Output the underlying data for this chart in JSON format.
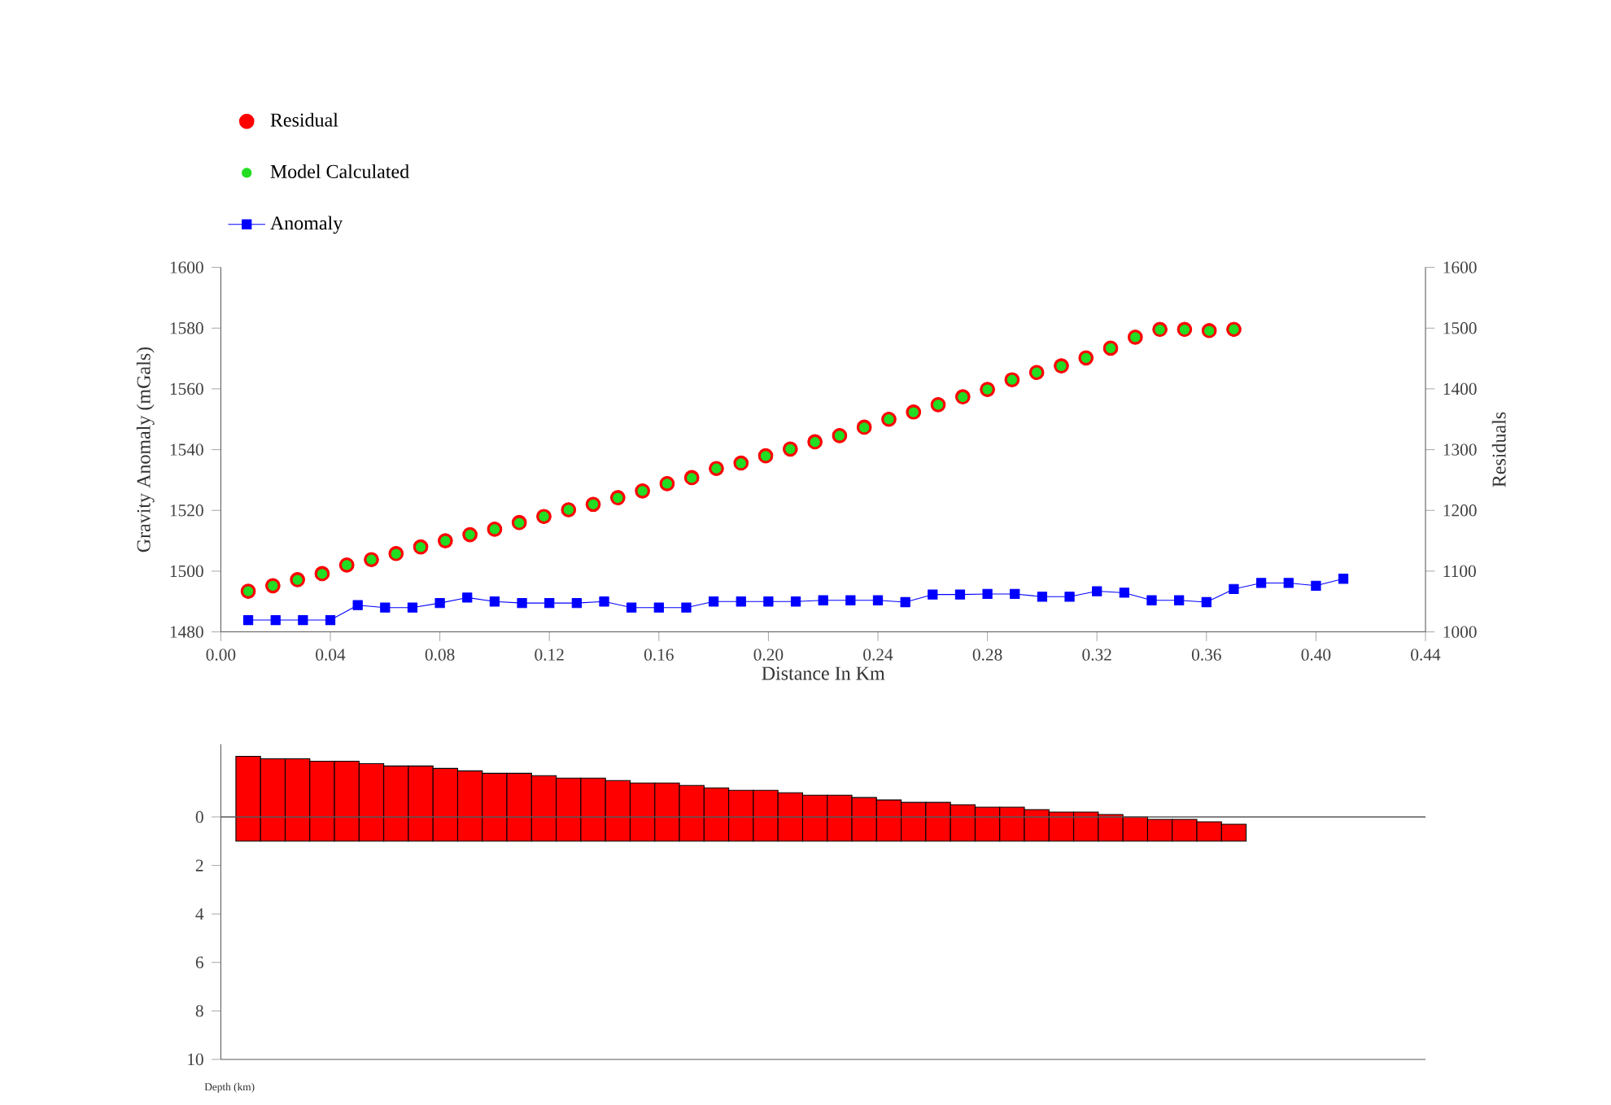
{
  "chart_data": [
    {
      "type": "scatter",
      "xlabel": "Distance In Km",
      "ylabel": "Gravity Anomaly (mGals)",
      "y2label": "Residuals",
      "xlim": [
        0,
        0.44
      ],
      "xticks": [
        {
          "value": 0,
          "label": "0.00"
        },
        {
          "value": 0.04,
          "label": "0.04"
        },
        {
          "value": 0.08,
          "label": "0.08"
        },
        {
          "value": 0.12,
          "label": "0.12"
        },
        {
          "value": 0.16,
          "label": "0.16"
        },
        {
          "value": 0.2,
          "label": "0.20"
        },
        {
          "value": 0.24,
          "label": "0.24"
        },
        {
          "value": 0.28,
          "label": "0.28"
        },
        {
          "value": 0.32,
          "label": "0.32"
        },
        {
          "value": 0.36,
          "label": "0.36"
        },
        {
          "value": 0.4,
          "label": "0.40"
        },
        {
          "value": 0.44,
          "label": "0.44"
        }
      ],
      "ylim": [
        1480,
        1600
      ],
      "yticks": [
        1480,
        1500,
        1520,
        1540,
        1560,
        1580,
        1600
      ],
      "y2lim": [
        1000,
        1600
      ],
      "y2ticks": [
        1000,
        1100,
        1200,
        1300,
        1400,
        1500,
        1600
      ],
      "legend": "top left",
      "series": [
        {
          "name": "Residual",
          "type": "scatter",
          "marker": "circle",
          "axis": "y2",
          "color": "#ff0000",
          "x": [
            0.01,
            0.019,
            0.028,
            0.037,
            0.046,
            0.055,
            0.064,
            0.073,
            0.082,
            0.091,
            0.1,
            0.109,
            0.118,
            0.127,
            0.136,
            0.145,
            0.154,
            0.163,
            0.172,
            0.181,
            0.19,
            0.199,
            0.208,
            0.217,
            0.226,
            0.235,
            0.244,
            0.253,
            0.262,
            0.271,
            0.28,
            0.289,
            0.298,
            0.307,
            0.316,
            0.325,
            0.334,
            0.343,
            0.352,
            0.361,
            0.37
          ],
          "values": [
            1067,
            1076,
            1086,
            1096,
            1110,
            1119,
            1129,
            1140,
            1150,
            1160,
            1169,
            1180,
            1190,
            1201,
            1210,
            1221,
            1232,
            1244,
            1254,
            1269,
            1278,
            1290,
            1301,
            1313,
            1323,
            1337,
            1350,
            1362,
            1374,
            1387,
            1399,
            1415,
            1427,
            1438,
            1451,
            1467,
            1485,
            1498,
            1498,
            1496,
            1498
          ]
        },
        {
          "name": "Model Calculated",
          "type": "scatter",
          "marker": "circle",
          "color": "#22dd22",
          "x": [
            0.01,
            0.019,
            0.028,
            0.037,
            0.046,
            0.055,
            0.064,
            0.073,
            0.082,
            0.091,
            0.1,
            0.109,
            0.118,
            0.127,
            0.136,
            0.145,
            0.154,
            0.163,
            0.172,
            0.181,
            0.19,
            0.199,
            0.208,
            0.217,
            0.226,
            0.235,
            0.244,
            0.253,
            0.262,
            0.271,
            0.28,
            0.289,
            0.298,
            0.307,
            0.316,
            0.325,
            0.334,
            0.343,
            0.352,
            0.361,
            0.37
          ],
          "values": [
            1493.4,
            1495.2,
            1497.1,
            1499.1,
            1502.0,
            1503.8,
            1505.7,
            1507.9,
            1510.0,
            1512.0,
            1513.8,
            1515.9,
            1518.0,
            1520.2,
            1522.0,
            1524.1,
            1526.4,
            1528.8,
            1530.7,
            1533.8,
            1535.5,
            1537.9,
            1540.2,
            1542.5,
            1544.6,
            1547.3,
            1550.0,
            1552.3,
            1554.8,
            1557.3,
            1559.8,
            1563.0,
            1565.4,
            1567.5,
            1570.2,
            1573.4,
            1577.0,
            1579.5,
            1579.5,
            1579.1,
            1579.6
          ]
        },
        {
          "name": "Anomaly",
          "type": "line",
          "marker": "square",
          "color": "#0000ff",
          "x": [
            0.01,
            0.02,
            0.03,
            0.04,
            0.05,
            0.06,
            0.07,
            0.08,
            0.09,
            0.1,
            0.11,
            0.12,
            0.13,
            0.14,
            0.15,
            0.16,
            0.17,
            0.18,
            0.19,
            0.2,
            0.21,
            0.22,
            0.23,
            0.24,
            0.25,
            0.26,
            0.27,
            0.28,
            0.29,
            0.3,
            0.31,
            0.32,
            0.33,
            0.34,
            0.35,
            0.36,
            0.37,
            0.38,
            0.39,
            0.4,
            0.41
          ],
          "values": [
            1483.9,
            1483.9,
            1483.9,
            1483.9,
            1488.8,
            1488.0,
            1488.0,
            1489.5,
            1491.3,
            1490.0,
            1489.5,
            1489.5,
            1489.5,
            1490.0,
            1488.0,
            1488.0,
            1488.0,
            1490.0,
            1490.0,
            1490.0,
            1490.0,
            1490.4,
            1490.4,
            1490.4,
            1489.8,
            1492.3,
            1492.3,
            1492.5,
            1492.5,
            1491.6,
            1491.6,
            1493.4,
            1492.9,
            1490.4,
            1490.4,
            1489.8,
            1494.1,
            1496.1,
            1496.1,
            1495.2,
            1497.5
          ]
        }
      ]
    },
    {
      "type": "bar",
      "ylabel": "Depth (km)",
      "tick_labels": "y",
      "color": "#ff0000",
      "xlim": [
        0,
        0.44
      ],
      "ylim": [
        10,
        -3
      ],
      "yticks": [
        0,
        2,
        4,
        6,
        8,
        10
      ],
      "ref_lines": [
        {
          "axis": "y",
          "value": 0
        }
      ],
      "x": [
        0.01,
        0.019,
        0.028,
        0.037,
        0.046,
        0.055,
        0.064,
        0.073,
        0.082,
        0.091,
        0.1,
        0.109,
        0.118,
        0.127,
        0.136,
        0.145,
        0.154,
        0.163,
        0.172,
        0.181,
        0.19,
        0.199,
        0.208,
        0.217,
        0.226,
        0.235,
        0.244,
        0.253,
        0.262,
        0.271,
        0.28,
        0.289,
        0.298,
        0.307,
        0.316,
        0.325,
        0.334,
        0.343,
        0.352,
        0.361,
        0.37
      ],
      "base": [
        -2.5,
        -2.4,
        -2.4,
        -2.3,
        -2.3,
        -2.2,
        -2.1,
        -2.1,
        -2.0,
        -1.9,
        -1.8,
        -1.8,
        -1.7,
        -1.6,
        -1.6,
        -1.5,
        -1.4,
        -1.4,
        -1.3,
        -1.2,
        -1.1,
        -1.1,
        -1.0,
        -0.9,
        -0.9,
        -0.8,
        -0.7,
        -0.6,
        -0.6,
        -0.5,
        -0.4,
        -0.4,
        -0.3,
        -0.2,
        -0.2,
        -0.1,
        0.0,
        0.1,
        0.1,
        0.2,
        0.3
      ],
      "values": [
        3.5,
        3.4,
        3.4,
        3.3,
        3.3,
        3.2,
        3.1,
        3.1,
        3.0,
        2.9,
        2.8,
        2.8,
        2.7,
        2.6,
        2.6,
        2.5,
        2.4,
        2.4,
        2.3,
        2.2,
        2.1,
        2.1,
        2.0,
        1.9,
        1.9,
        1.8,
        1.7,
        1.6,
        1.6,
        1.5,
        1.4,
        1.4,
        1.3,
        1.2,
        1.2,
        1.1,
        1.0,
        0.9,
        0.9,
        0.8,
        0.7
      ]
    }
  ]
}
